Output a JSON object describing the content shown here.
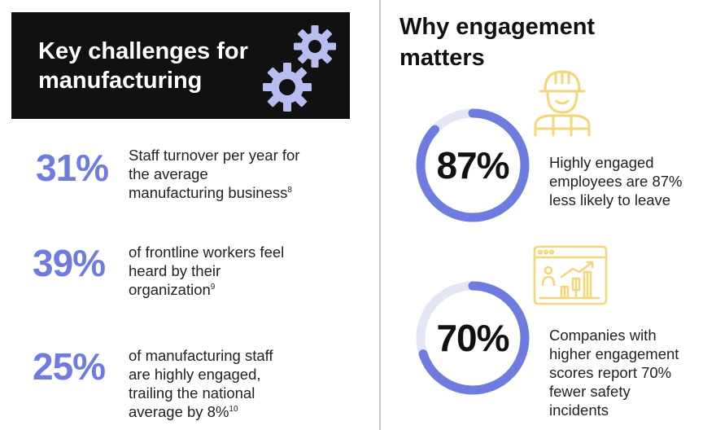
{
  "left": {
    "title_line1": "Key challenges for",
    "title_line2": "manufacturing",
    "stats": [
      {
        "value": "31%",
        "line1": "Staff turnover per year for",
        "line2": "the average",
        "line3": "manufacturing business",
        "ref": "8"
      },
      {
        "value": "39%",
        "line1": "of frontline workers feel",
        "line2": "heard by their",
        "line3": "organization",
        "ref": "9"
      },
      {
        "value": "25%",
        "line1": "of manufacturing staff",
        "line2": "are highly engaged,",
        "line3": "trailing the national",
        "line4": "average by 8%",
        "ref": "10"
      }
    ]
  },
  "right": {
    "title_line1": "Why engagement",
    "title_line2": "matters",
    "rings": [
      {
        "value": "87%",
        "fraction": 0.87,
        "line1": "Highly engaged",
        "line2": "employees are 87%",
        "line3": "less likely to leave"
      },
      {
        "value": "70%",
        "fraction": 0.7,
        "line1": "Companies with",
        "line2": "higher engagement",
        "line3": "scores report 70%",
        "line4": "fewer safety",
        "line5": "incidents"
      }
    ]
  },
  "colors": {
    "accent": "#6e7bdf",
    "accent_light": "#c6ccf4",
    "ring_track": "#e4e6f6",
    "icon_yellow": "#f1d67a",
    "header_bg": "#111111"
  },
  "icons": [
    "gear-icon",
    "worker-icon",
    "dashboard-chart-icon"
  ]
}
